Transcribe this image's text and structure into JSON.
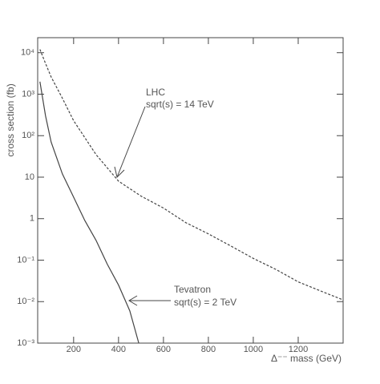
{
  "chart_data": {
    "type": "line",
    "xlabel": "Δ⁻⁻ mass (GeV)",
    "ylabel": "cross section (fb)",
    "annotations": [
      "LHC",
      "sqrt(s) = 14 TeV",
      "Tevatron",
      "sqrt(s) = 2 TeV"
    ],
    "xlim": [
      40,
      1400
    ],
    "xticks": [
      200,
      400,
      600,
      800,
      1000,
      1200
    ],
    "ylim": [
      0.001,
      23000
    ],
    "ylog": true,
    "yticks": [
      {
        "value": 0.001,
        "label": "10⁻³"
      },
      {
        "value": 0.01,
        "label": "10⁻²"
      },
      {
        "value": 0.1,
        "label": "10⁻¹"
      },
      1,
      10,
      {
        "value": 100,
        "label": "10²"
      },
      {
        "value": 1000,
        "label": "10³"
      },
      {
        "value": 10000,
        "label": "10⁴"
      }
    ],
    "series": [
      {
        "color": "#444444",
        "style": "dashed",
        "x": [
          50,
          75,
          100,
          150,
          200,
          300,
          400,
          500,
          600,
          700,
          800,
          900,
          1000,
          1100,
          1200,
          1300,
          1400
        ],
        "values": [
          12000,
          5500,
          2600,
          800,
          230,
          35,
          8,
          3.5,
          1.8,
          0.8,
          0.43,
          0.22,
          0.11,
          0.06,
          0.03,
          0.018,
          0.011
        ]
      },
      {
        "color": "#444444",
        "style": "solid",
        "x": [
          50,
          75,
          100,
          150,
          200,
          250,
          300,
          350,
          400,
          450,
          490
        ],
        "values": [
          2000,
          300,
          70,
          12,
          3.3,
          0.9,
          0.3,
          0.08,
          0.025,
          0.006,
          0.001
        ]
      }
    ]
  }
}
